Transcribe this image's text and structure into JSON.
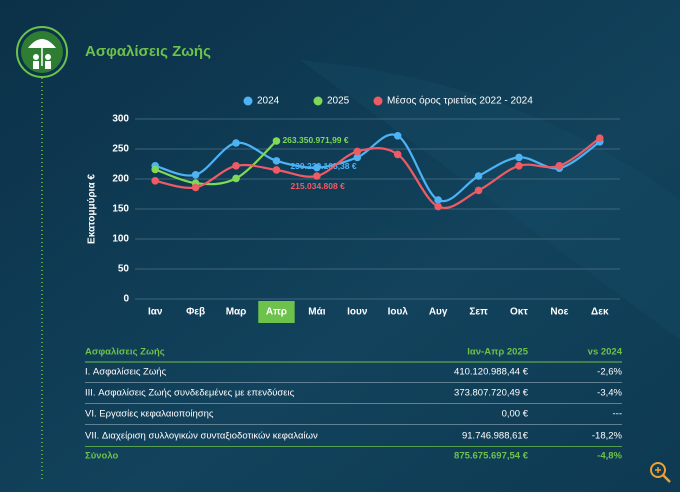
{
  "header": {
    "title": "Ασφαλίσεις Ζωής"
  },
  "chart_data": {
    "type": "line",
    "y_label": "Εκατομμύρια €",
    "categories": [
      "Ιαν",
      "Φεβ",
      "Μαρ",
      "Απρ",
      "Μάι",
      "Ιουν",
      "Ιουλ",
      "Αυγ",
      "Σεπ",
      "Οκτ",
      "Νοε",
      "Δεκ"
    ],
    "highlight_category": 3,
    "series": [
      {
        "name": "2024",
        "color": "#4db3f5",
        "values": [
          222,
          207,
          260,
          230.22910538,
          219,
          236,
          272,
          165,
          205,
          236,
          218,
          262
        ],
        "value_labels": [
          null,
          null,
          null,
          "230.229.105,38 €",
          null,
          null,
          null,
          null,
          null,
          null,
          null,
          null
        ]
      },
      {
        "name": "2025",
        "color": "#7ed957",
        "values": [
          216,
          193,
          201,
          263.35097199,
          null,
          null,
          null,
          null,
          null,
          null,
          null,
          null
        ],
        "value_labels": [
          null,
          null,
          null,
          "263.350.971,99 €",
          null,
          null,
          null,
          null,
          null,
          null,
          null,
          null
        ]
      },
      {
        "name": "Μέσος όρος τριετίας 2022 - 2024",
        "color": "#ef5b64",
        "values": [
          197,
          186,
          222,
          215.034808,
          205,
          246,
          241,
          154,
          181,
          222,
          222,
          268
        ],
        "value_labels": [
          null,
          null,
          null,
          "215.034.808 €",
          null,
          null,
          null,
          null,
          null,
          null,
          null,
          null
        ]
      }
    ],
    "ylim": [
      0,
      300
    ],
    "yticks": [
      0,
      50,
      100,
      150,
      200,
      250,
      300
    ],
    "grid": true,
    "legend": "top"
  },
  "table": {
    "header": [
      "Ασφαλίσεις Ζωής",
      "Ιαν-Απρ 2025",
      "vs 2024"
    ],
    "rows": [
      [
        "I. Ασφαλίσεις  Ζωής",
        "410.120.988,44 €",
        "-2,6%"
      ],
      [
        "III. Ασφαλίσεις  Ζωής  συνδεδεμένες με επενδύσεις",
        "373.807.720,49 €",
        "-3,4%"
      ],
      [
        "VI. Εργασίες κεφαλαιοποίησης",
        "0,00 €",
        "---"
      ],
      [
        "VII. Διαχείριση συλλογικών συνταξιοδοτικών κεφαλαίων",
        "91.746.988,61€",
        "-18,2%"
      ]
    ],
    "total": [
      "Σύνολο",
      "875.675.697,54 €",
      "-4,8%"
    ]
  }
}
